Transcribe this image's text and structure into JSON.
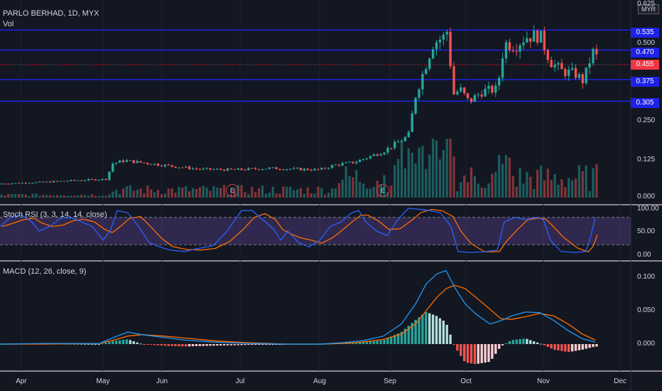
{
  "header": {
    "symbol": "PARLO BERHAD, 1D, MYX",
    "volume_label": "Vol",
    "currency": "MYR"
  },
  "price_axis": {
    "ticks": [
      "0.625",
      "0.500",
      "0.250",
      "0.125",
      "0.000"
    ],
    "values": [
      0.625,
      0.5,
      0.25,
      0.125,
      0.0
    ]
  },
  "levels": [
    {
      "label": "0.535",
      "value": 0.535,
      "color": "#1e22e6"
    },
    {
      "label": "0.470",
      "value": 0.47,
      "color": "#1e22e6"
    },
    {
      "label": "0.375",
      "value": 0.375,
      "color": "#1e22e6"
    },
    {
      "label": "0.305",
      "value": 0.305,
      "color": "#1e22e6"
    }
  ],
  "last_price": {
    "label": "0.455",
    "value": 0.455,
    "color": "#f23645"
  },
  "stoch": {
    "title": "Stoch RSI (3, 3, 14, 14, close)",
    "ticks": [
      "100.00",
      "50.00",
      "0.00"
    ]
  },
  "macd": {
    "title": "MACD (12, 26, close, 9)",
    "ticks": [
      "0.100",
      "0.050",
      "0.000"
    ]
  },
  "x_axis": [
    {
      "label": "Apr",
      "x": 30
    },
    {
      "label": "May",
      "x": 145
    },
    {
      "label": "Jun",
      "x": 228
    },
    {
      "label": "Jul",
      "x": 338
    },
    {
      "label": "Aug",
      "x": 450
    },
    {
      "label": "Sep",
      "x": 549
    },
    {
      "label": "Oct",
      "x": 656
    },
    {
      "label": "Nov",
      "x": 765
    },
    {
      "label": "Dec",
      "x": 873
    }
  ],
  "earnings_markers": [
    {
      "label": "E",
      "x": 326
    },
    {
      "label": "E",
      "x": 538
    }
  ],
  "colors": {
    "up": "#26a69a",
    "down": "#ef5350",
    "stoch_k": "#2962ff",
    "stoch_d": "#ff6d00",
    "macd_line": "#2196f3",
    "signal_line": "#ff6d00",
    "band": "#7e57c2"
  },
  "chart_data": {
    "type": "candlestick",
    "title": "PARLO BERHAD, 1D, MYX",
    "x_range": [
      "Apr",
      "Dec"
    ],
    "ylim": [
      0,
      0.625
    ],
    "close_path": [
      [
        "Apr",
        0.05
      ],
      [
        "mid-Apr",
        0.055
      ],
      [
        "early-May",
        0.06
      ],
      [
        "mid-May",
        0.115
      ],
      [
        "Jun",
        0.105
      ],
      [
        "mid-Jun",
        0.095
      ],
      [
        "Jul",
        0.09
      ],
      [
        "mid-Jul",
        0.095
      ],
      [
        "Aug",
        0.09
      ],
      [
        "mid-Aug",
        0.115
      ],
      [
        "late-Aug",
        0.15
      ],
      [
        "Sep",
        0.2
      ],
      [
        "mid-Sep",
        0.5
      ],
      [
        "late-Sep",
        0.54
      ],
      [
        "Oct",
        0.33
      ],
      [
        "mid-Oct",
        0.35
      ],
      [
        "late-Oct",
        0.5
      ],
      [
        "Nov",
        0.52
      ],
      [
        "mid-Nov",
        0.4
      ],
      [
        "late-Nov",
        0.47
      ]
    ],
    "last_close": 0.455,
    "horizontal_levels": [
      0.535,
      0.47,
      0.375,
      0.305
    ],
    "stoch_rsi": {
      "ticks": [
        0,
        50,
        100
      ],
      "overbought": 80,
      "oversold": 20
    },
    "macd": {
      "ticks": [
        0,
        0.05,
        0.1
      ],
      "peak": 0.11,
      "trough_hist": -0.025
    }
  }
}
